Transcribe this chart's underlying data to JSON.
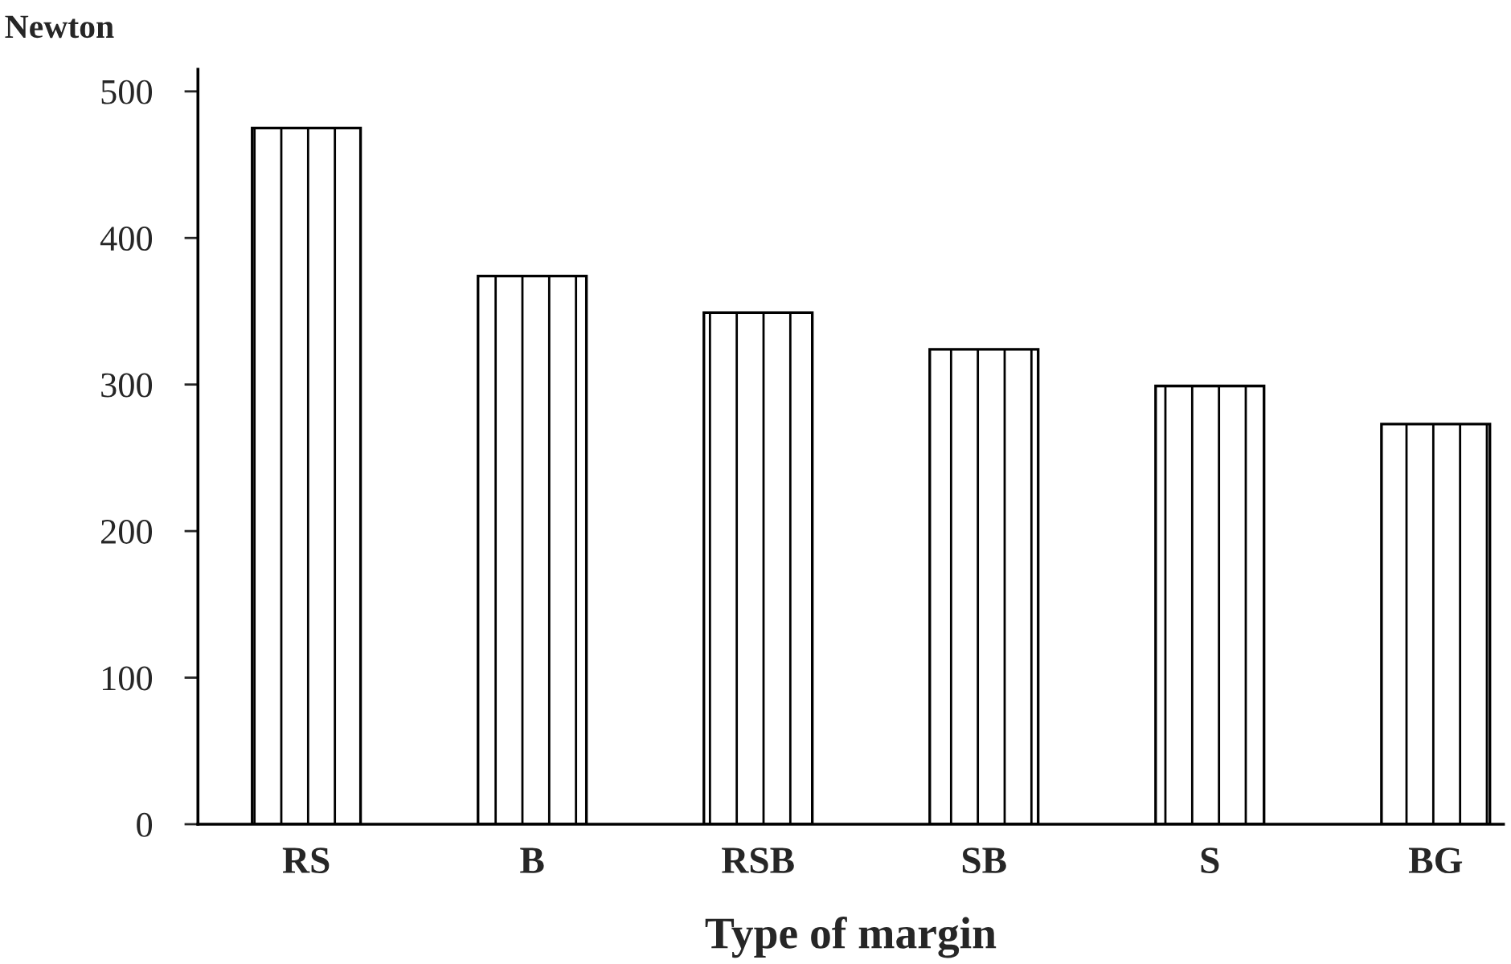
{
  "chart_data": {
    "type": "bar",
    "xlabel": "Type of margin",
    "ylabel": "Newton",
    "categories": [
      "RS",
      "B",
      "RSB",
      "SB",
      "S",
      "BG"
    ],
    "values": [
      475,
      374,
      349,
      324,
      299,
      273
    ],
    "color": "#000000",
    "ylim": [
      0,
      515
    ],
    "yticks": [
      0,
      100,
      200,
      300,
      400,
      500
    ],
    "grid": false
  }
}
